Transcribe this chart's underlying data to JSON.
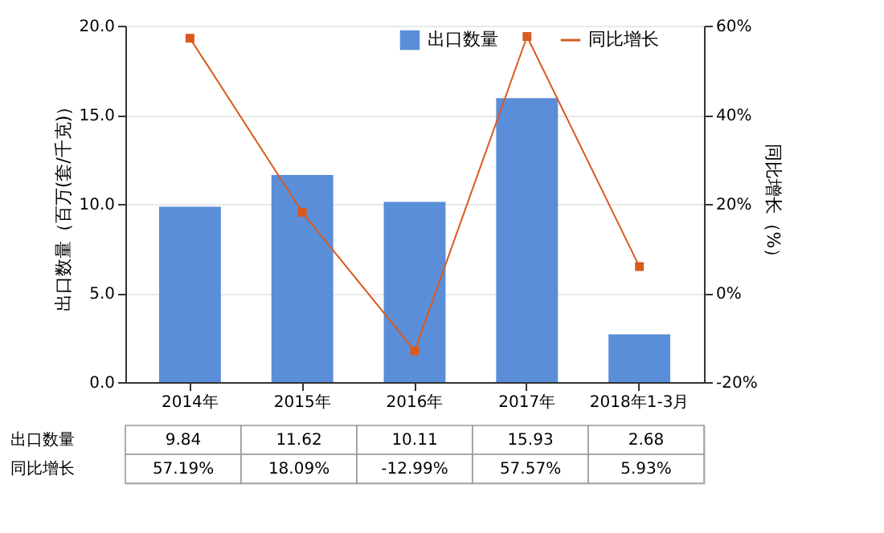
{
  "chart_data": {
    "type": "bar",
    "ylabel": "出口数量（百万(套/千克)）",
    "y2label": "同比增长（%）",
    "categories": [
      "2014年",
      "2015年",
      "2016年",
      "2017年",
      "2018年1-3月"
    ],
    "series": [
      {
        "name": "出口数量",
        "color": "#5b8ed8",
        "values": [
          9.84,
          11.62,
          10.11,
          15.93,
          2.68
        ],
        "value_labels": [
          "9.84",
          "11.62",
          "10.11",
          "15.93",
          "2.68"
        ]
      },
      {
        "name": "同比增长",
        "type": "line",
        "axis": "y2",
        "color": "#d95a1e",
        "marker": "square",
        "values": [
          57.19,
          18.09,
          -12.99,
          57.57,
          5.93
        ],
        "value_labels": [
          "57.19%",
          "18.09%",
          "-12.99%",
          "57.57%",
          "5.93%"
        ]
      }
    ],
    "ylim": [
      0,
      20
    ],
    "yticks": [
      {
        "value": 0,
        "label": "0.0"
      },
      {
        "value": 5,
        "label": "5.0"
      },
      {
        "value": 10,
        "label": "10.0"
      },
      {
        "value": 15,
        "label": "15.0"
      },
      {
        "value": 20,
        "label": "20.0"
      }
    ],
    "y2lim": [
      -20,
      60
    ],
    "y2ticks": [
      {
        "value": -20,
        "label": "-20%"
      },
      {
        "value": 0,
        "label": "0%"
      },
      {
        "value": 20,
        "label": "20%"
      },
      {
        "value": 40,
        "label": "40%"
      },
      {
        "value": 60,
        "label": "60%"
      }
    ],
    "grid": "y",
    "legend": "top right"
  }
}
